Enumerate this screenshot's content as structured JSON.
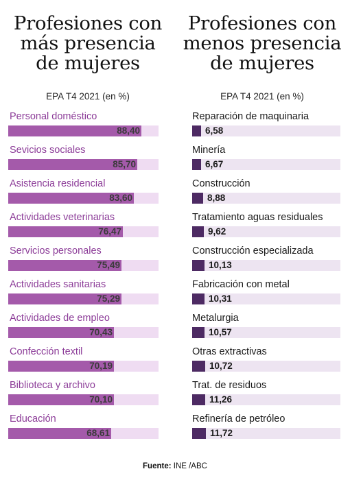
{
  "source_label": "Fuente:",
  "source_value": "INE /ABC",
  "colors": {
    "left_bar": "#a45aaa",
    "left_track": "#efdcf2",
    "left_label": "#8c3c98",
    "right_bar": "#4d2a63",
    "right_track": "#ede4f1"
  },
  "chart_data": [
    {
      "type": "bar",
      "orientation": "horizontal",
      "title": "Profesiones con\nmás presencia\nde mujeres",
      "subtitle": "EPA T4 2021 (en %)",
      "xlim": [
        0,
        100
      ],
      "categories": [
        "Personal doméstico",
        "Sevicios sociales",
        "Asistencia residencial",
        "Actividades veterinarias",
        "Servicios personales",
        "Actividades sanitarias",
        "Actividades de empleo",
        "Confección textil",
        "Biblioteca y archivo",
        "Educación"
      ],
      "values": [
        88.4,
        85.7,
        83.6,
        76.47,
        75.49,
        75.29,
        70.43,
        70.19,
        70.1,
        68.61
      ],
      "value_labels": [
        "88,40",
        "85,70",
        "83,60",
        "76,47",
        "75,49",
        "75,29",
        "70,43",
        "70,19",
        "70,10",
        "68,61"
      ]
    },
    {
      "type": "bar",
      "orientation": "horizontal",
      "title": "Profesiones con\nmenos presencia\nde mujeres",
      "subtitle": "EPA T4 2021 (en %)",
      "xlim": [
        0,
        100
      ],
      "categories": [
        "Reparación de maquinaria",
        "Minería",
        "Construcción",
        "Tratamiento aguas residuales",
        "Construcción especializada",
        "Fabricación con metal",
        "Metalurgia",
        "Otras extractivas",
        "Trat. de residuos",
        "Refinería de petróleo"
      ],
      "values": [
        6.58,
        6.67,
        8.88,
        9.62,
        10.13,
        10.31,
        10.57,
        10.72,
        11.26,
        11.72
      ],
      "value_labels": [
        "6,58",
        "6,67",
        "8,88",
        "9,62",
        "10,13",
        "10,31",
        "10,57",
        "10,72",
        "11,26",
        "11,72"
      ]
    }
  ]
}
